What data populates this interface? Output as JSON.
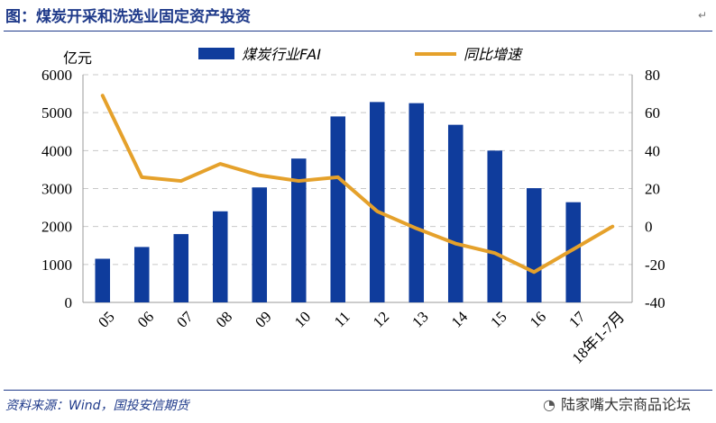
{
  "header": {
    "title": "图：煤炭开采和洗选业固定资产投资",
    "edit_mark": "↵"
  },
  "footer": {
    "source": "资料来源：Wind，国投安信期货",
    "watermark": "陆家嘴大宗商品论坛"
  },
  "chart_data": {
    "type": "bar",
    "title": "图：煤炭开采和洗选业固定资产投资",
    "unit_left": "亿元",
    "categories": [
      "05",
      "06",
      "07",
      "08",
      "09",
      "10",
      "11",
      "12",
      "13",
      "14",
      "15",
      "16",
      "17",
      "18年1-7月"
    ],
    "series": [
      {
        "name": "煤炭行业FAI",
        "type": "bar",
        "axis": "left",
        "color": "#0f3c9c",
        "values": [
          1150,
          1460,
          1800,
          2400,
          3030,
          3790,
          4900,
          5280,
          5250,
          4680,
          4000,
          3010,
          2640,
          null
        ]
      },
      {
        "name": "同比增速",
        "type": "line",
        "axis": "right",
        "color": "#e5a12b",
        "values": [
          69,
          26,
          24,
          33,
          27,
          24,
          26,
          8,
          -1,
          -9,
          -14,
          -24,
          -12,
          0
        ]
      }
    ],
    "y_left": {
      "min": 0,
      "max": 6000,
      "ticks": [
        0,
        1000,
        2000,
        3000,
        4000,
        5000,
        6000
      ]
    },
    "y_right": {
      "min": -40,
      "max": 80,
      "ticks": [
        -40,
        -20,
        0,
        20,
        40,
        60,
        80
      ]
    },
    "grid": "horizontal dashed",
    "legend_position": "top"
  }
}
